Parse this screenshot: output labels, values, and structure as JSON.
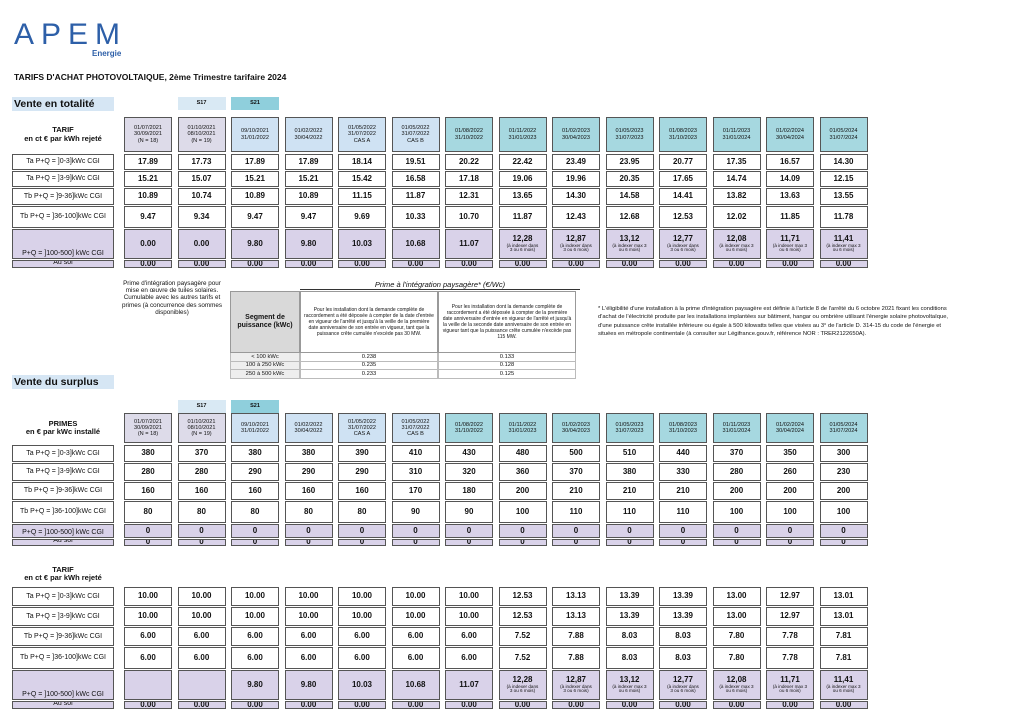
{
  "header": {
    "logo": "APEM",
    "logo_sub": "Energie",
    "title": "TARIFS D'ACHAT PHOTOVOLTAIQUE, 2ème Trimestre tarifaire 2024"
  },
  "periods": [
    "01/07/2021\n30/09/2021\n(N = 18)",
    "01/10/2021\n08/10/2021\n(N = 19)",
    "09/10/2021\n31/01/2022",
    "01/02/2022\n30/04/2022",
    "01/05/2022\n31/07/2022\nCAS A",
    "01/05/2022\n31/07/2022\nCAS B",
    "01/08/2022\n31/10/2022",
    "01/11/2022\n31/01/2023",
    "01/02/2023\n30/04/2023",
    "01/05/2023\n31/07/2023",
    "01/08/2023\n31/10/2023",
    "01/11/2023\n31/01/2024",
    "01/02/2024\n30/04/2024",
    "01/05/2024\n31/07/2024"
  ],
  "totalite": {
    "heading": "Vente en totalité",
    "s17": "S17",
    "s21": "S21",
    "table": {
      "header": "TARIF\nen ct € par kWh rejeté",
      "rows": [
        {
          "label": "Ta P+Q = ]0-3]kWc CGI",
          "cells": [
            "17.89",
            "17.73",
            "17.89",
            "17.89",
            "18.14",
            "19.51",
            "20.22",
            "22.42",
            "23.49",
            "23.95",
            "20.77",
            "17.35",
            "16.57",
            "14.30"
          ]
        },
        {
          "label": "Ta P+Q = ]3-9]kWc CGI",
          "cells": [
            "15.21",
            "15.07",
            "15.21",
            "15.21",
            "15.42",
            "16.58",
            "17.18",
            "19.06",
            "19.96",
            "20.35",
            "17.65",
            "14.74",
            "14.09",
            "12.15"
          ]
        },
        {
          "label": "Tb P+Q = ]9-36]kWc CGI",
          "cells": [
            "10.89",
            "10.74",
            "10.89",
            "10.89",
            "11.15",
            "11.87",
            "12.31",
            "13.65",
            "14.30",
            "14.58",
            "14.41",
            "13.82",
            "13.63",
            "13.55"
          ]
        },
        {
          "label": "Tb P+Q = ]36-100]kWc CGI",
          "cells": [
            "9.47",
            "9.34",
            "9.47",
            "9.47",
            "9.69",
            "10.33",
            "10.70",
            "11.87",
            "12.43",
            "12.68",
            "12.53",
            "12.02",
            "11.85",
            "11.78"
          ]
        },
        {
          "label": "P+Q = ]100-500] kWc CGI",
          "cells": [
            "0.00",
            "0.00",
            "9.80",
            "9.80",
            "10.03",
            "10.68",
            "11.07",
            {
              "value": "12,28",
              "note": "(à indexer dans\n3 ou 6 mois)"
            },
            {
              "value": "12,87",
              "note": "(à indexer dans\n3 ou 6 mois)"
            },
            {
              "value": "13,12",
              "note": "(à indexer max 3\nou 6 mois)"
            },
            {
              "value": "12,77",
              "note": "(à indexer dans\n3 ou 6 mois)"
            },
            {
              "value": "12,08",
              "note": "(à indexer max 3\nou 6 mois)"
            },
            {
              "value": "11,71",
              "note": "(à indexer max 3\nou 6 mois)"
            },
            {
              "value": "11,41",
              "note": "(à indexer max 3\nou 6 mois)"
            }
          ]
        },
        {
          "label": "Au sol",
          "cells": [
            "0.00",
            "0.00",
            "0.00",
            "0.00",
            "0.00",
            "0.00",
            "0.00",
            "0.00",
            "0.00",
            "0.00",
            "0.00",
            "0.00",
            "0.00",
            "0.00"
          ]
        }
      ]
    }
  },
  "prime": {
    "note": "Prime d'intégration paysagère pour mise en œuvre de tuiles solaires. Cumulable avec les autres tarifs et primes (à concurrence des sommes disponibles)",
    "title": "Prime à l'intégration paysagère* (€/Wc)",
    "segment": "Segment de puissance (kWc)",
    "columns": [
      "Pour les installation dont la demande complète de raccordement a été déposée à compter de la date d'entrée en vigueur de l'arrêté et jusqu'à la veille de la première date anniversaire de son entrée en vigueur, tant que la puissance crête cumulée n'excède pas 30 MW.",
      "Pour les installation dont la demande complète de raccordement a été déposée à compter de la première date anniversaire d'entrée en vigueur de l'arrêté et jusqu'à la veille de la seconde date anniversaire de son entrée en vigueur tant que la puissance crête cumulée n'excède pas 115 MW."
    ],
    "rows": [
      [
        "< 100 kWc",
        "0.238",
        "0.133"
      ],
      [
        "100 à 250 kWc",
        "0.235",
        "0.128"
      ],
      [
        "250 à 500 kWc",
        "0.233",
        "0.125"
      ]
    ],
    "footnote": "* L'éligibilité d'une installation à la prime d'intégration paysagère est définie à l'article 8 de l'arrêté du 6 octobre 2021 fixant les conditions d'achat de l'électricité produite par les installations implantées sur bâtiment, hangar ou ombrière utilisant l'énergie solaire photovoltaïque, d'une puissance crête installée inférieure ou égale à 500 kilowatts telles que visées au 3° de l'article D. 314-15 du code de l'énergie et situées en métropole continentale (à consulter sur Légifrance.gouv.fr, référence NOR : TRER2122650A)."
  },
  "surplus": {
    "heading": "Vente du surplus",
    "s17": "S17",
    "s21": "S21",
    "primes": {
      "header": "PRIMES\nen € par kWc installé",
      "rows": [
        {
          "label": "Ta P+Q = ]0-3]kWc CGI",
          "cells": [
            "380",
            "370",
            "380",
            "380",
            "390",
            "410",
            "430",
            "480",
            "500",
            "510",
            "440",
            "370",
            "350",
            "300"
          ]
        },
        {
          "label": "Ta P+Q = ]3-9]kWc CGI",
          "cells": [
            "280",
            "280",
            "290",
            "290",
            "290",
            "310",
            "320",
            "360",
            "370",
            "380",
            "330",
            "280",
            "260",
            "230"
          ]
        },
        {
          "label": "Tb P+Q = ]9-36]kWc CGI",
          "cells": [
            "160",
            "160",
            "160",
            "160",
            "160",
            "170",
            "180",
            "200",
            "210",
            "210",
            "210",
            "200",
            "200",
            "200"
          ]
        },
        {
          "label": "Tb P+Q = ]36-100]kWc CGI",
          "cells": [
            "80",
            "80",
            "80",
            "80",
            "80",
            "90",
            "90",
            "100",
            "110",
            "110",
            "110",
            "100",
            "100",
            "100"
          ]
        },
        {
          "label": "P+Q = ]100-500] kWc CGI",
          "cells": [
            "0",
            "0",
            "0",
            "0",
            "0",
            "0",
            "0",
            "0",
            "0",
            "0",
            "0",
            "0",
            "0",
            "0"
          ]
        },
        {
          "label": "Au sol",
          "cells": [
            "0",
            "0",
            "0",
            "0",
            "0",
            "0",
            "0",
            "0",
            "0",
            "0",
            "0",
            "0",
            "0",
            "0"
          ]
        }
      ]
    },
    "tarif": {
      "header": "TARIF\nen ct € par kWh rejeté",
      "rows": [
        {
          "label": "Ta P+Q = ]0-3]kWc CGI",
          "cells": [
            "10.00",
            "10.00",
            "10.00",
            "10.00",
            "10.00",
            "10.00",
            "10.00",
            "12.53",
            "13.13",
            "13.39",
            "13.39",
            "13.00",
            "12.97",
            "13.01"
          ]
        },
        {
          "label": "Ta P+Q = ]3-9]kWc CGI",
          "cells": [
            "10.00",
            "10.00",
            "10.00",
            "10.00",
            "10.00",
            "10.00",
            "10.00",
            "12.53",
            "13.13",
            "13.39",
            "13.39",
            "13.00",
            "12.97",
            "13.01"
          ]
        },
        {
          "label": "Tb P+Q = ]9-36]kWc CGI",
          "cells": [
            "6.00",
            "6.00",
            "6.00",
            "6.00",
            "6.00",
            "6.00",
            "6.00",
            "7.52",
            "7.88",
            "8.03",
            "8.03",
            "7.80",
            "7.78",
            "7.81"
          ]
        },
        {
          "label": "Tb P+Q = ]36-100]kWc CGI",
          "cells": [
            "6.00",
            "6.00",
            "6.00",
            "6.00",
            "6.00",
            "6.00",
            "6.00",
            "7.52",
            "7.88",
            "8.03",
            "8.03",
            "7.80",
            "7.78",
            "7.81"
          ]
        },
        {
          "label": "P+Q = ]100-500] kWc CGI",
          "cells": [
            null,
            null,
            "9.80",
            "9.80",
            "10.03",
            "10.68",
            "11.07",
            {
              "value": "12,28",
              "note": "(à indexer dans\n3 ou 6 mois)"
            },
            {
              "value": "12,87",
              "note": "(à indexer dans\n3 ou 6 mois)"
            },
            {
              "value": "13,12",
              "note": "(à indexer max 3\nou 6 mois)"
            },
            {
              "value": "12,77",
              "note": "(à indexer dans\n3 ou 6 mois)"
            },
            {
              "value": "12,08",
              "note": "(à indexer max 3\nou 6 mois)"
            },
            {
              "value": "11,71",
              "note": "(à indexer max 3\nou 6 mois)"
            },
            {
              "value": "11,41",
              "note": "(à indexer max 3\nou 6 mois)"
            }
          ]
        },
        {
          "label": "Au sol",
          "cells": [
            "0.00",
            "0.00",
            "0.00",
            "0.00",
            "0.00",
            "0.00",
            "0.00",
            "0.00",
            "0.00",
            "0.00",
            "0.00",
            "0.00",
            "0.00",
            "0.00"
          ]
        }
      ]
    }
  }
}
